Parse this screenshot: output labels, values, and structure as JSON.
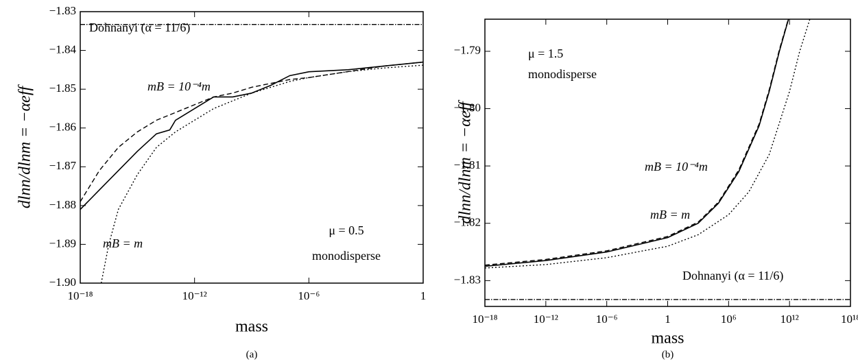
{
  "chart_data": [
    {
      "type": "line",
      "caption": "(a)",
      "xlabel": "mass",
      "ylabel": "dlnn/dlnm = −αeff",
      "xscale": "log",
      "xlim": [
        1e-18,
        1
      ],
      "xticks": [
        {
          "value": 1e-18,
          "label": "10⁻¹⁸"
        },
        {
          "value": 1e-12,
          "label": "10⁻¹²"
        },
        {
          "value": 1e-06,
          "label": "10⁻⁶"
        },
        1
      ],
      "ylim": [
        -1.9,
        -1.83
      ],
      "yticks": [
        {
          "value": -1.83,
          "label": "−1.83"
        },
        {
          "value": -1.84,
          "label": "−1.84"
        },
        {
          "value": -1.85,
          "label": "−1.85"
        },
        {
          "value": -1.86,
          "label": "−1.86"
        },
        {
          "value": -1.87,
          "label": "−1.87"
        },
        {
          "value": -1.88,
          "label": "−1.88"
        },
        {
          "value": -1.89,
          "label": "−1.89"
        },
        {
          "value": -1.9,
          "label": "−1.90"
        }
      ],
      "annotations": [
        "Dohnanyi (α = 11/6)",
        "mB = 10⁻⁴m",
        "mB = m",
        "μ = 0.5",
        "monodisperse"
      ],
      "series": [
        {
          "color": "#000000",
          "dash": "solid",
          "x": [
            1e-18,
            1e-17,
            1e-16,
            1e-15,
            1e-14,
            5e-14,
            1e-13,
            1e-12,
            1e-11,
            1e-10,
            1e-09,
            1e-08,
            1e-07,
            1e-06,
            0.0001,
            0.01,
            1
          ],
          "values": [
            -1.881,
            -1.876,
            -1.871,
            -1.866,
            -1.8615,
            -1.8605,
            -1.858,
            -1.855,
            -1.852,
            -1.852,
            -1.851,
            -1.849,
            -1.8465,
            -1.8455,
            -1.845,
            -1.844,
            -1.843
          ]
        },
        {
          "color": "#000000",
          "dash": "dashed",
          "x": [
            1e-18,
            1e-17,
            1e-16,
            1e-15,
            1e-14,
            1e-13,
            1e-12,
            1e-11,
            1e-10,
            1e-09,
            1e-08,
            1e-07,
            1e-06,
            0.0001,
            0.01,
            1
          ],
          "values": [
            -1.879,
            -1.871,
            -1.865,
            -1.861,
            -1.858,
            -1.856,
            -1.854,
            -1.852,
            -1.851,
            -1.8495,
            -1.8485,
            -1.8475,
            -1.847,
            -1.8455,
            -1.844,
            -1.843
          ]
        },
        {
          "color": "#000000",
          "dash": "dotted",
          "x": [
            1.26e-17,
            3.16e-17,
            1e-16,
            1e-15,
            1e-14,
            1e-13,
            1e-12,
            1e-11,
            1e-10,
            1e-09,
            1e-08,
            1e-07,
            1e-06,
            0.0001,
            0.01,
            1
          ],
          "values": [
            -1.9,
            -1.89,
            -1.881,
            -1.872,
            -1.865,
            -1.861,
            -1.858,
            -1.855,
            -1.853,
            -1.851,
            -1.8495,
            -1.848,
            -1.847,
            -1.8455,
            -1.8445,
            -1.8438
          ]
        },
        {
          "color": "#000000",
          "dash": "dashdot",
          "x": [
            1e-18,
            1
          ],
          "values": [
            -1.8333,
            -1.8333
          ]
        }
      ]
    },
    {
      "type": "line",
      "caption": "(b)",
      "xlabel": "mass",
      "ylabel": "dlnn/dlnm = −αeff",
      "xscale": "log",
      "xlim": [
        1e-18,
        1e+18
      ],
      "xticks": [
        {
          "value": 1e-18,
          "label": "10⁻¹⁸"
        },
        {
          "value": 1e-12,
          "label": "10⁻¹²"
        },
        {
          "value": 1e-06,
          "label": "10⁻⁶"
        },
        1,
        {
          "value": 1000000.0,
          "label": "10⁶"
        },
        {
          "value": 1000000000000.0,
          "label": "10¹²"
        },
        {
          "value": 1e+18,
          "label": "10¹⁸"
        }
      ],
      "ylim": [
        -1.8345,
        -1.7844
      ],
      "yticks": [
        {
          "value": -1.83,
          "label": "−1.83"
        },
        {
          "value": -1.82,
          "label": "−1.82"
        },
        {
          "value": -1.81,
          "label": "−1.81"
        },
        {
          "value": -1.8,
          "label": "−1.80"
        },
        {
          "value": -1.79,
          "label": "−1.79"
        }
      ],
      "annotations": [
        "μ = 1.5",
        "monodisperse",
        "mB = 10⁻⁴m",
        "mB = m",
        "Dohnanyi (α = 11/6)"
      ],
      "series": [
        {
          "color": "#000000",
          "dash": "solid",
          "x": [
            1e-18,
            1e-12,
            1e-06,
            1,
            1000.0,
            100000.0,
            10000000.0,
            1000000000.0,
            10000000000.0,
            100000000000.0,
            790000000000.0
          ],
          "values": [
            -1.8275,
            -1.8265,
            -1.825,
            -1.8225,
            -1.82,
            -1.8165,
            -1.811,
            -1.803,
            -1.797,
            -1.79,
            -1.7844
          ]
        },
        {
          "color": "#000000",
          "dash": "dashed",
          "x": [
            1e-18,
            1e-12,
            1e-06,
            1,
            1000.0,
            100000.0,
            10000000.0,
            1000000000.0,
            10000000000.0,
            100000000000.0,
            750000000000.0
          ],
          "values": [
            -1.8273,
            -1.8263,
            -1.8248,
            -1.8223,
            -1.8198,
            -1.8163,
            -1.8107,
            -1.8027,
            -1.7967,
            -1.7897,
            -1.7844
          ]
        },
        {
          "color": "#000000",
          "dash": "dotted",
          "x": [
            1e-18,
            1e-12,
            1e-06,
            1,
            1000.0,
            1000000.0,
            100000000.0,
            10000000000.0,
            1000000000000.0,
            10000000000000.0,
            100000000000000.0
          ],
          "values": [
            -1.8278,
            -1.8272,
            -1.826,
            -1.824,
            -1.822,
            -1.8185,
            -1.8145,
            -1.808,
            -1.797,
            -1.79,
            -1.7844
          ]
        },
        {
          "color": "#000000",
          "dash": "dashdot",
          "x": [
            1e-18,
            1e+18
          ],
          "values": [
            -1.8333,
            -1.8333
          ]
        }
      ]
    }
  ]
}
